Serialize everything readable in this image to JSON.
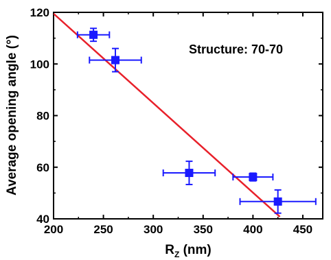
{
  "chart_data": {
    "type": "scatter",
    "title": "",
    "annotation": "Structure: 70-70",
    "xlabel": {
      "main": "R",
      "sub": "Z",
      "unit": " (nm)"
    },
    "ylabel": "Average opening angle (°)",
    "xlim": [
      200,
      470
    ],
    "ylim": [
      40,
      120
    ],
    "xticks": [
      200,
      250,
      300,
      350,
      400,
      450
    ],
    "yticks": [
      40,
      60,
      80,
      100,
      120
    ],
    "grid": false,
    "legend": "none",
    "points": [
      {
        "x": 240,
        "y": 111.3,
        "xerr": 16,
        "yerr": 2.5
      },
      {
        "x": 262,
        "y": 101.5,
        "xerr": 26,
        "yerr": 4.5
      },
      {
        "x": 336,
        "y": 57.8,
        "xerr": 26,
        "yerr": 4.5
      },
      {
        "x": 400,
        "y": 56.2,
        "xerr": 20,
        "yerr": 1.5
      },
      {
        "x": 425,
        "y": 46.7,
        "xerr": 38,
        "yerr": 4.5
      }
    ],
    "fit_line": {
      "x1": 200,
      "y1": 119.5,
      "x2": 427,
      "y2": 40.8
    },
    "colors": {
      "points": "#1a1aff",
      "fit": "#e8202a",
      "axes": "#000000"
    }
  }
}
